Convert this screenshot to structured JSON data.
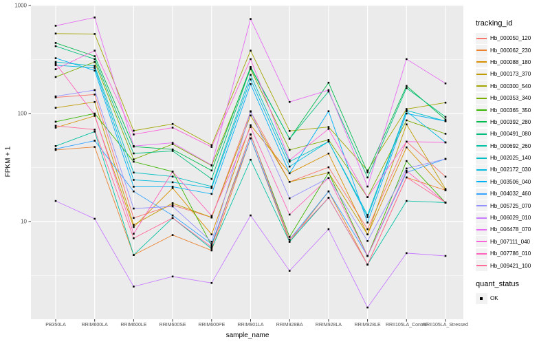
{
  "chart_data": {
    "type": "line",
    "title": "",
    "xlabel": "sample_name",
    "ylabel": "FPKM + 1",
    "y_scale": "log10",
    "y_ticks": [
      10,
      100,
      1000
    ],
    "y_minor_ticks": [
      3.162,
      31.62,
      316.2
    ],
    "ylim": [
      1.25,
      1030
    ],
    "grid": "on",
    "panel_background": "#EBEBEB",
    "gridline_color": "#FFFFFF",
    "point_color": "#000000",
    "point_shape": "square",
    "legend_position": "right",
    "categories": [
      "PB350LA",
      "RRIM600LA",
      "RRIM600LE",
      "RRIM600SE",
      "RRIM600PE",
      "RRIM901LA",
      "RRIM928BA",
      "RRIM928LA",
      "RRIM928LE",
      "RRII105LA_Control",
      "RRII105LA_Stressed"
    ],
    "series": [
      {
        "name": "Hb_000050_120",
        "color": "#F8766D",
        "values": [
          141,
          150,
          10.8,
          14.2,
          10.9,
          104,
          23.3,
          31.8,
          8.5,
          55,
          26
        ]
      },
      {
        "name": "Hb_000062_230",
        "color": "#EA8331",
        "values": [
          46,
          49,
          4.9,
          7.5,
          5.4,
          58.9,
          6.5,
          19,
          4.0,
          25.6,
          19.5
        ]
      },
      {
        "name": "Hb_000088_180",
        "color": "#D89000",
        "values": [
          74,
          95,
          8.9,
          20.4,
          7.6,
          78,
          28,
          42.6,
          7.6,
          48.6,
          19.5
        ]
      },
      {
        "name": "Hb_000173_370",
        "color": "#C09B00",
        "values": [
          113,
          128,
          9.3,
          14.8,
          10.9,
          96,
          23.3,
          28.3,
          7.6,
          79.3,
          20
        ]
      },
      {
        "name": "Hb_000300_540",
        "color": "#A3A500",
        "values": [
          550,
          545,
          69.3,
          80,
          51,
          382,
          69,
          75,
          29.7,
          110,
          126
        ]
      },
      {
        "name": "Hb_000353_340",
        "color": "#7CAE00",
        "values": [
          218,
          300,
          37.6,
          52,
          33,
          258,
          46,
          57,
          16.8,
          86.5,
          65
        ]
      },
      {
        "name": "Hb_000365_350",
        "color": "#39B600",
        "values": [
          84,
          100,
          35.8,
          29,
          6.0,
          64,
          7.2,
          28.3,
          4.8,
          36.3,
          15
        ]
      },
      {
        "name": "Hb_000392_280",
        "color": "#00BB4E",
        "values": [
          450,
          340,
          49.4,
          46.5,
          29.7,
          270,
          58.5,
          193,
          28.6,
          180,
          88
        ]
      },
      {
        "name": "Hb_000491_080",
        "color": "#00BF7D",
        "values": [
          420,
          319,
          42.7,
          45,
          24.8,
          265,
          58.5,
          160,
          25.6,
          172,
          93
        ]
      },
      {
        "name": "Hb_000692_260",
        "color": "#00C1A3",
        "values": [
          50,
          68,
          4.9,
          10.8,
          5.6,
          37.3,
          6.5,
          16.6,
          4.0,
          15.5,
          15
        ]
      },
      {
        "name": "Hb_002025_140",
        "color": "#00BFC4",
        "values": [
          300,
          276,
          28.4,
          26.1,
          21.1,
          228,
          35.8,
          55,
          11.5,
          107,
          85
        ]
      },
      {
        "name": "Hb_002172_030",
        "color": "#00BAE0",
        "values": [
          280,
          265,
          24.3,
          23.1,
          20.4,
          207,
          32.3,
          55,
          11,
          105,
          54
        ]
      },
      {
        "name": "Hb_003506_040",
        "color": "#00B0F6",
        "values": [
          325,
          250,
          21,
          21,
          18,
          187,
          28,
          105,
          9.8,
          100,
          85
        ]
      },
      {
        "name": "Hb_004032_460",
        "color": "#35A2FF",
        "values": [
          47,
          56,
          19,
          11.4,
          6.2,
          58.9,
          6.8,
          19,
          4.8,
          28.5,
          38
        ]
      },
      {
        "name": "Hb_005725_070",
        "color": "#9590FF",
        "values": [
          144,
          165,
          13.2,
          13.8,
          6.5,
          105,
          16.4,
          25.3,
          6.6,
          31,
          38
        ]
      },
      {
        "name": "Hb_006029_010",
        "color": "#C77CFF",
        "values": [
          15.5,
          10.6,
          2.5,
          3.1,
          2.7,
          11.4,
          3.5,
          8.5,
          1.6,
          5.1,
          4.8
        ]
      },
      {
        "name": "Hb_006478_070",
        "color": "#E76BF3",
        "values": [
          650,
          775,
          50,
          53.5,
          33.3,
          750,
          128,
          165,
          21.1,
          319,
          190
        ]
      },
      {
        "name": "Hb_007111_040",
        "color": "#FA62DB",
        "values": [
          257,
          382,
          64,
          74,
          49,
          319,
          37,
          72,
          16.8,
          55,
          54
        ]
      },
      {
        "name": "Hb_007786_010",
        "color": "#FF62BC",
        "values": [
          290,
          97,
          7.7,
          29,
          11.3,
          75,
          11.6,
          25.3,
          4.8,
          29.5,
          15
        ]
      },
      {
        "name": "Hb_009421_100",
        "color": "#FF6A98",
        "values": [
          77,
          71,
          7.0,
          10.8,
          5.8,
          64,
          6.8,
          16.6,
          4.0,
          25.6,
          15
        ]
      }
    ]
  },
  "axes": {
    "x_title": "sample_name",
    "y_title": "FPKM + 1",
    "y_tick_labels": [
      "10",
      "100",
      "1000"
    ]
  },
  "legend": {
    "tracking_title": "tracking_id",
    "quant_title": "quant_status",
    "quant_items": [
      {
        "label": "OK"
      }
    ]
  }
}
